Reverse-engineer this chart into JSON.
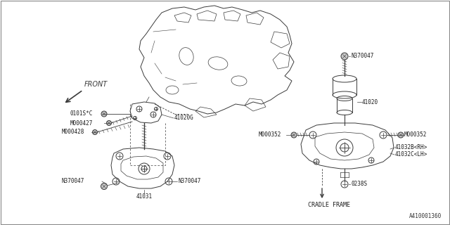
{
  "bg_color": "#ffffff",
  "diagram_id": "A410001360",
  "lc": "#3a3a3a",
  "lw": 0.7,
  "labels": {
    "front_arrow": "FRONT",
    "41020G": "41020G",
    "0101SC": "0101S*C",
    "M000427": "M000427",
    "M000428": "M000428",
    "N370047_left1": "N370047",
    "N370047_left2": "N370047",
    "N370047_right_top": "N370047",
    "41031": "41031",
    "41020": "41020",
    "M000352_left": "M000352",
    "M000352_right": "M000352",
    "41032B": "41032B<RH>",
    "41032C": "41032C<LH>",
    "0238S": "0238S",
    "cradle_frame": "CRADLE FRAME"
  }
}
